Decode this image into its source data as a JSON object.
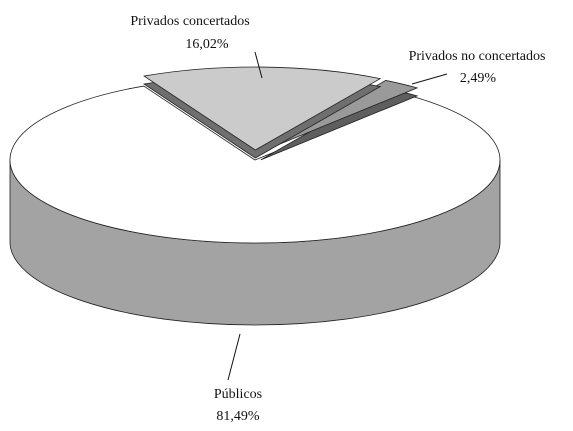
{
  "chart_data": {
    "type": "pie",
    "categories": [
      "Públicos",
      "Privados concertados",
      "Privados no concertados"
    ],
    "values": [
      81.49,
      16.02,
      2.49
    ],
    "value_labels": [
      "81,49%",
      "16,02%",
      "2,49%"
    ],
    "colors": [
      "#ffffff",
      "#cbcbcb",
      "#9a9a9a"
    ],
    "side_colors": [
      "#a3a3a3",
      "#6f6f6f",
      "#5e5e5e"
    ]
  }
}
